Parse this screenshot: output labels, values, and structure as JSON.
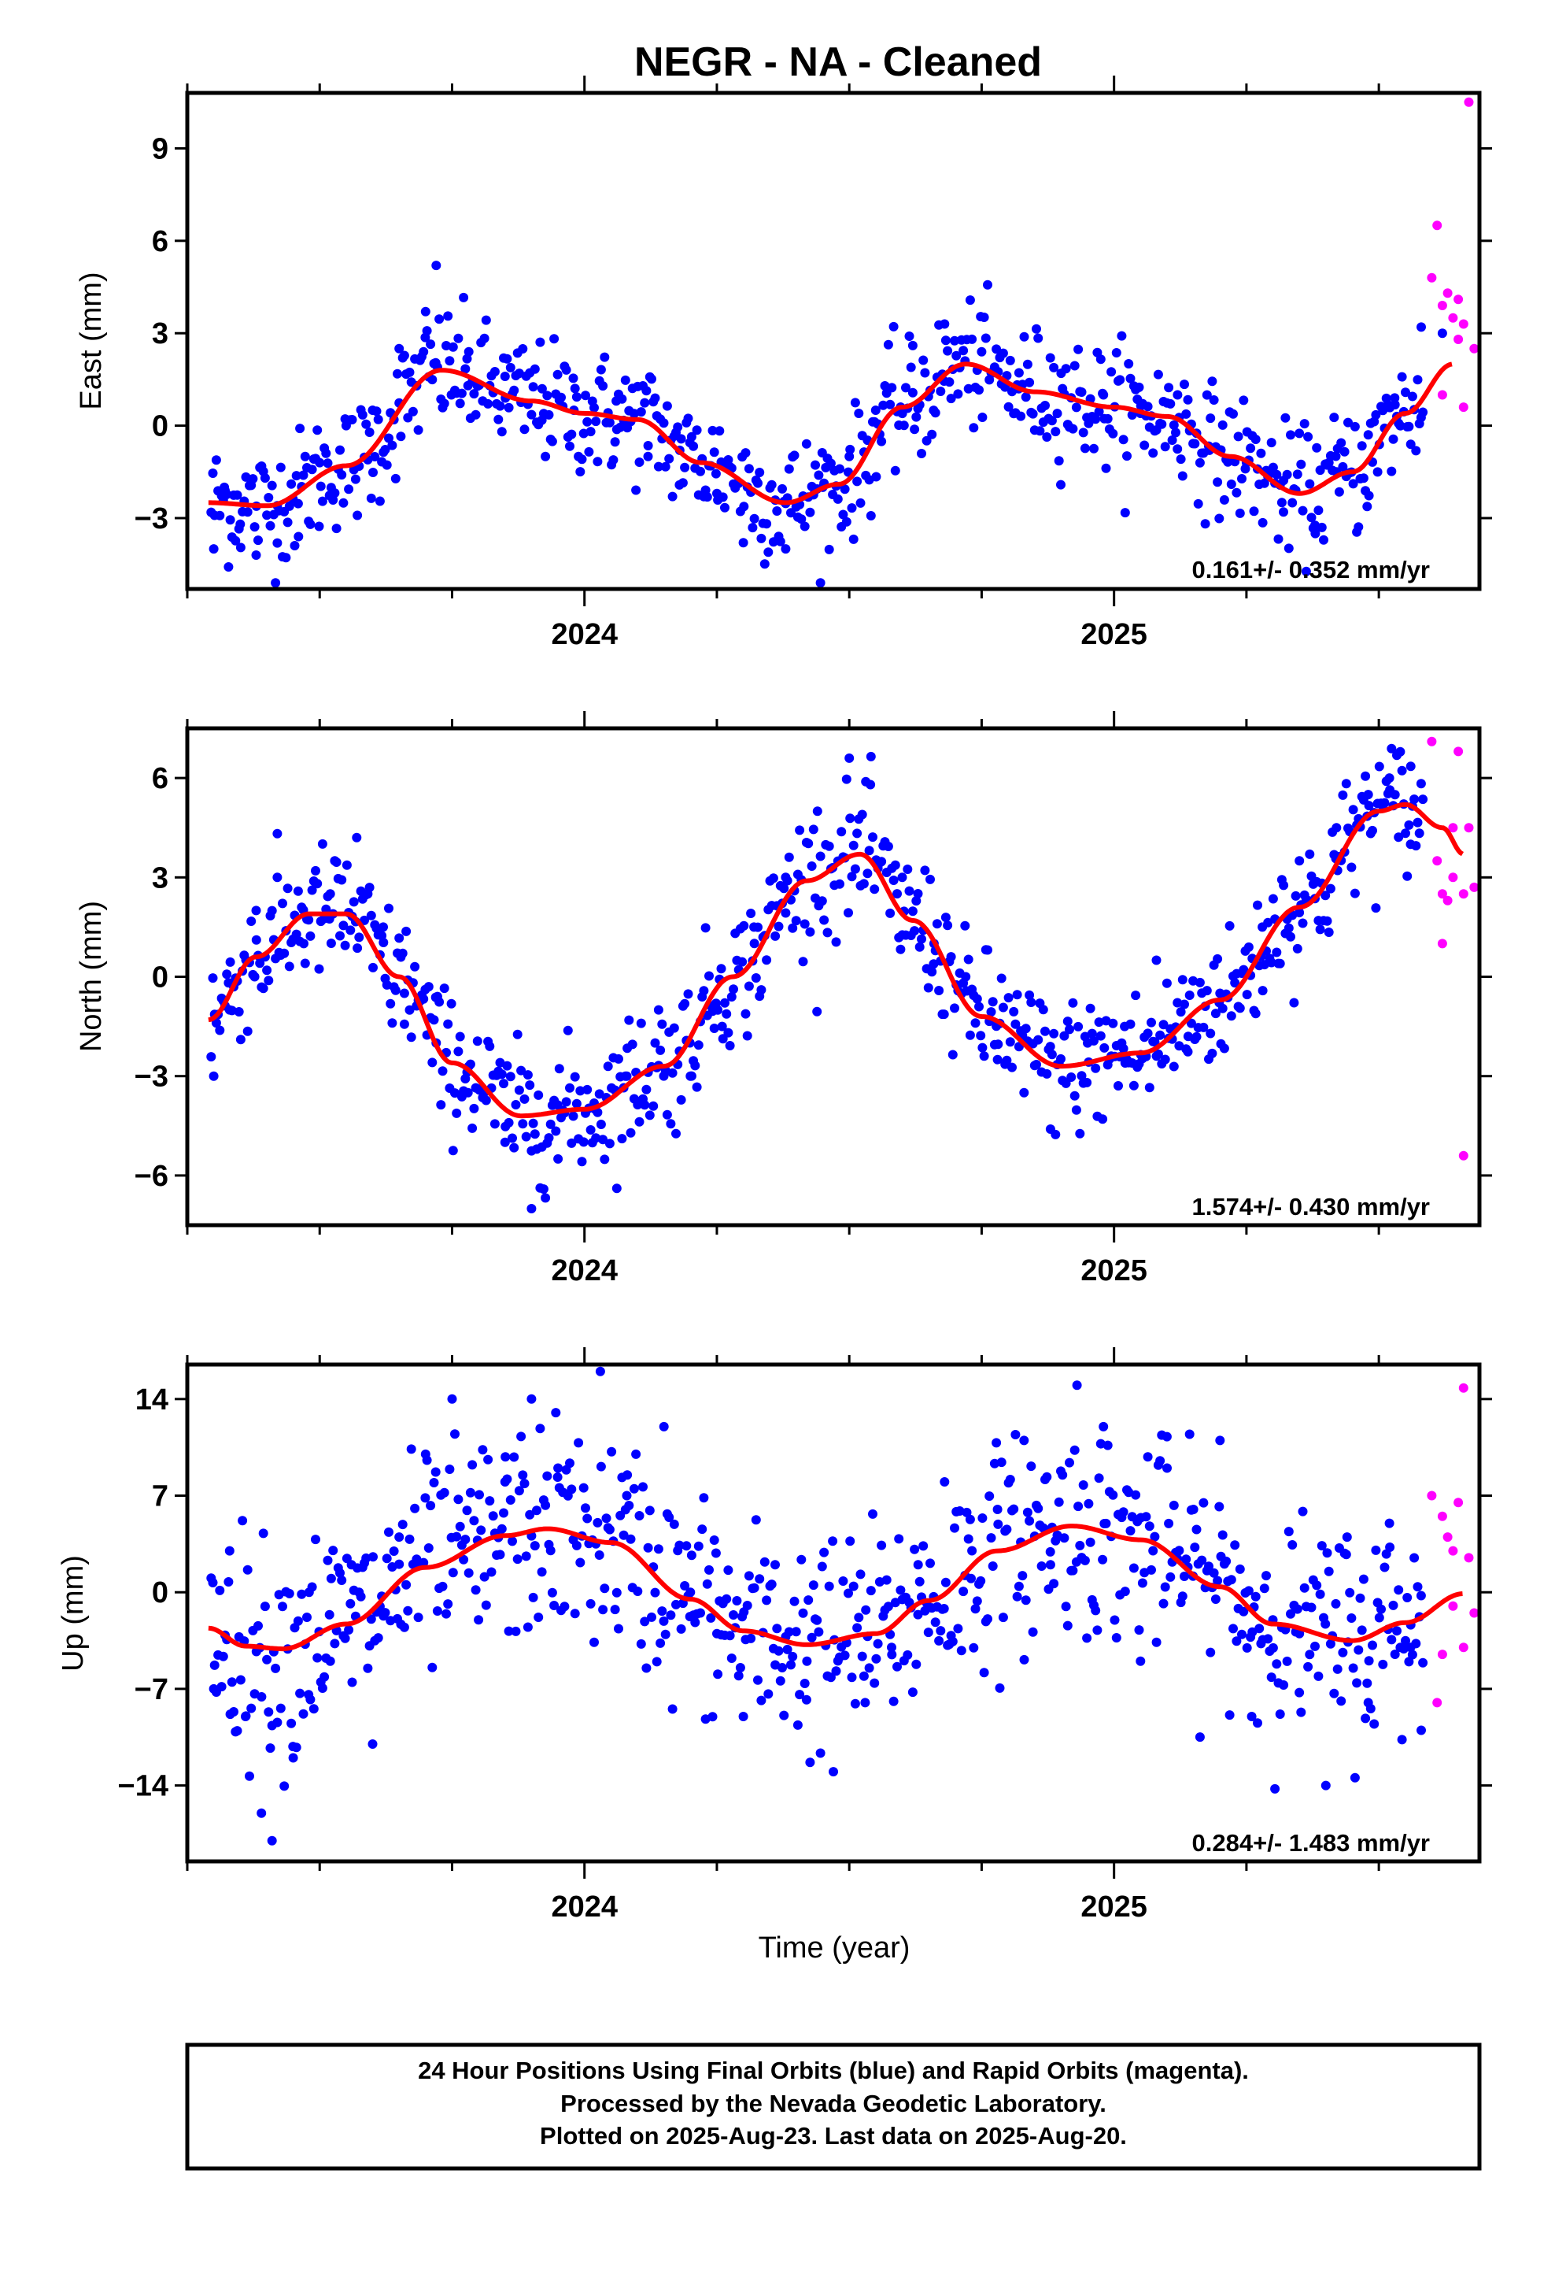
{
  "title": "NEGR  - NA - Cleaned",
  "xlabel": "Time (year)",
  "footer_lines": [
    "24 Hour Positions Using Final Orbits (blue) and Rapid Orbits (magenta).",
    "Processed by the Nevada Geodetic Laboratory.",
    "Plotted on 2025-Aug-23. Last data on 2025-Aug-20."
  ],
  "colors": {
    "final": "#0000ff",
    "rapid": "#ff00ff",
    "model": "#ff0000",
    "frame": "#000000"
  },
  "chart_data": [
    {
      "type": "scatter",
      "name": "east",
      "ylabel": "East (mm)",
      "rate": "0.161+/- 0.352 mm/yr",
      "xlim": [
        2023.25,
        2025.69
      ],
      "ylim": [
        -5.3,
        10.8
      ],
      "yticks": [
        -3,
        0,
        3,
        6,
        9
      ],
      "xticks": [
        2024,
        2025
      ],
      "model_points": [
        [
          2023.29,
          -2.5
        ],
        [
          2023.4,
          -2.6
        ],
        [
          2023.55,
          -1.3
        ],
        [
          2023.73,
          1.8
        ],
        [
          2023.9,
          0.8
        ],
        [
          2024.0,
          0.4
        ],
        [
          2024.1,
          0.2
        ],
        [
          2024.22,
          -1.2
        ],
        [
          2024.38,
          -2.5
        ],
        [
          2024.48,
          -1.9
        ],
        [
          2024.6,
          0.6
        ],
        [
          2024.72,
          2.0
        ],
        [
          2024.85,
          1.1
        ],
        [
          2025.0,
          0.6
        ],
        [
          2025.1,
          0.3
        ],
        [
          2025.22,
          -1.0
        ],
        [
          2025.35,
          -2.2
        ],
        [
          2025.45,
          -1.5
        ],
        [
          2025.55,
          0.4
        ],
        [
          2025.64,
          2.0
        ]
      ],
      "final_samples": [
        [
          2023.3,
          -4.0
        ],
        [
          2023.32,
          -2.0
        ],
        [
          2023.35,
          -3.2
        ],
        [
          2023.38,
          -4.2
        ],
        [
          2023.42,
          -2.6
        ],
        [
          2023.46,
          -3.6
        ],
        [
          2023.5,
          -1.2
        ],
        [
          2023.55,
          0.0
        ],
        [
          2023.6,
          0.5
        ],
        [
          2023.65,
          2.5
        ],
        [
          2023.7,
          3.7
        ],
        [
          2023.72,
          5.2
        ],
        [
          2023.78,
          1.3
        ],
        [
          2023.85,
          1.6
        ],
        [
          2023.92,
          1.2
        ],
        [
          2023.98,
          0.5
        ],
        [
          2024.06,
          0.8
        ],
        [
          2024.12,
          -1.0
        ],
        [
          2024.18,
          -0.8
        ],
        [
          2024.25,
          -2.2
        ],
        [
          2024.3,
          -3.8
        ],
        [
          2024.38,
          -4.0
        ],
        [
          2024.45,
          -2.0
        ],
        [
          2024.5,
          -1.0
        ],
        [
          2024.55,
          0.5
        ],
        [
          2024.62,
          2.6
        ],
        [
          2024.68,
          3.3
        ],
        [
          2024.75,
          2.4
        ],
        [
          2024.82,
          1.2
        ],
        [
          2024.9,
          1.7
        ],
        [
          2024.98,
          1.0
        ],
        [
          2025.05,
          0.4
        ],
        [
          2025.12,
          1.0
        ],
        [
          2025.18,
          -0.8
        ],
        [
          2025.25,
          -1.2
        ],
        [
          2025.32,
          -2.8
        ],
        [
          2025.38,
          -3.5
        ],
        [
          2025.42,
          -1.5
        ],
        [
          2025.48,
          -0.3
        ],
        [
          2025.53,
          0.9
        ],
        [
          2025.58,
          3.2
        ],
        [
          2025.62,
          3.0
        ]
      ],
      "rapid_points": [
        [
          2025.6,
          4.8
        ],
        [
          2025.61,
          6.5
        ],
        [
          2025.62,
          3.9
        ],
        [
          2025.62,
          1.0
        ],
        [
          2025.63,
          4.3
        ],
        [
          2025.64,
          3.5
        ],
        [
          2025.65,
          4.1
        ],
        [
          2025.65,
          2.8
        ],
        [
          2025.66,
          3.3
        ],
        [
          2025.66,
          0.6
        ],
        [
          2025.67,
          10.5
        ],
        [
          2025.68,
          2.5
        ]
      ]
    },
    {
      "type": "scatter",
      "name": "north",
      "ylabel": "North (mm)",
      "rate": "1.574+/- 0.430 mm/yr",
      "xlim": [
        2023.25,
        2025.69
      ],
      "ylim": [
        -7.5,
        7.5
      ],
      "yticks": [
        -6,
        -3,
        0,
        3,
        6
      ],
      "xticks": [
        2024,
        2025
      ],
      "model_points": [
        [
          2023.29,
          -1.3
        ],
        [
          2023.38,
          0.6
        ],
        [
          2023.48,
          1.9
        ],
        [
          2023.55,
          1.9
        ],
        [
          2023.65,
          0.0
        ],
        [
          2023.75,
          -2.6
        ],
        [
          2023.88,
          -4.2
        ],
        [
          2024.0,
          -4.0
        ],
        [
          2024.15,
          -2.7
        ],
        [
          2024.28,
          0.0
        ],
        [
          2024.42,
          2.9
        ],
        [
          2024.52,
          3.7
        ],
        [
          2024.62,
          1.7
        ],
        [
          2024.75,
          -1.2
        ],
        [
          2024.9,
          -2.7
        ],
        [
          2025.05,
          -2.3
        ],
        [
          2025.2,
          -0.7
        ],
        [
          2025.35,
          2.1
        ],
        [
          2025.5,
          5.0
        ],
        [
          2025.55,
          5.2
        ],
        [
          2025.62,
          4.5
        ],
        [
          2025.66,
          3.7
        ]
      ],
      "final_samples": [
        [
          2023.3,
          -3.0
        ],
        [
          2023.33,
          -1.0
        ],
        [
          2023.38,
          2.0
        ],
        [
          2023.42,
          3.0
        ],
        [
          2023.47,
          1.0
        ],
        [
          2023.52,
          2.5
        ],
        [
          2023.57,
          4.2
        ],
        [
          2023.62,
          1.5
        ],
        [
          2023.66,
          -0.5
        ],
        [
          2023.72,
          -2.0
        ],
        [
          2023.78,
          -3.5
        ],
        [
          2023.85,
          -5.0
        ],
        [
          2023.9,
          -7.0
        ],
        [
          2023.95,
          -5.5
        ],
        [
          2024.02,
          -4.0
        ],
        [
          2024.08,
          -3.0
        ],
        [
          2024.14,
          -1.0
        ],
        [
          2024.2,
          -3.0
        ],
        [
          2024.26,
          -1.5
        ],
        [
          2024.32,
          1.5
        ],
        [
          2024.38,
          3.0
        ],
        [
          2024.44,
          5.0
        ],
        [
          2024.5,
          6.6
        ],
        [
          2024.54,
          5.8
        ],
        [
          2024.6,
          3.0
        ],
        [
          2024.66,
          1.0
        ],
        [
          2024.72,
          0.0
        ],
        [
          2024.78,
          -2.5
        ],
        [
          2024.83,
          -3.5
        ],
        [
          2024.88,
          -4.6
        ],
        [
          2024.95,
          -2.0
        ],
        [
          2025.02,
          -1.5
        ],
        [
          2025.08,
          0.5
        ],
        [
          2025.14,
          -1.8
        ],
        [
          2025.2,
          -0.5
        ],
        [
          2025.28,
          1.5
        ],
        [
          2025.35,
          3.5
        ],
        [
          2025.42,
          4.5
        ],
        [
          2025.48,
          5.5
        ],
        [
          2025.52,
          6.0
        ],
        [
          2025.56,
          4.0
        ]
      ],
      "rapid_points": [
        [
          2025.6,
          7.1
        ],
        [
          2025.61,
          3.5
        ],
        [
          2025.62,
          2.5
        ],
        [
          2025.62,
          1.0
        ],
        [
          2025.63,
          2.3
        ],
        [
          2025.64,
          3.0
        ],
        [
          2025.64,
          4.5
        ],
        [
          2025.65,
          6.8
        ],
        [
          2025.66,
          2.5
        ],
        [
          2025.66,
          -5.4
        ],
        [
          2025.67,
          4.5
        ],
        [
          2025.68,
          2.7
        ]
      ]
    },
    {
      "type": "scatter",
      "name": "up",
      "ylabel": "Up (mm)",
      "rate": "0.284+/- 1.483 mm/yr",
      "xlim": [
        2023.25,
        2025.69
      ],
      "ylim": [
        -19.5,
        16.5
      ],
      "yticks": [
        -14,
        -7,
        0,
        7,
        14
      ],
      "xticks": [
        2024,
        2025
      ],
      "model_points": [
        [
          2023.29,
          -2.6
        ],
        [
          2023.36,
          -3.9
        ],
        [
          2023.43,
          -4.1
        ],
        [
          2023.55,
          -2.3
        ],
        [
          2023.7,
          1.8
        ],
        [
          2023.85,
          4.1
        ],
        [
          2023.93,
          4.6
        ],
        [
          2024.05,
          3.6
        ],
        [
          2024.2,
          -0.5
        ],
        [
          2024.3,
          -2.8
        ],
        [
          2024.42,
          -3.8
        ],
        [
          2024.55,
          -3.0
        ],
        [
          2024.65,
          -0.6
        ],
        [
          2024.78,
          3.0
        ],
        [
          2024.92,
          4.8
        ],
        [
          2025.05,
          3.8
        ],
        [
          2025.2,
          0.4
        ],
        [
          2025.3,
          -2.3
        ],
        [
          2025.45,
          -3.5
        ],
        [
          2025.55,
          -2.2
        ],
        [
          2025.66,
          -0.1
        ]
      ],
      "final_samples": [
        [
          2023.3,
          -7.0
        ],
        [
          2023.33,
          3.0
        ],
        [
          2023.36,
          -9.0
        ],
        [
          2023.39,
          -16.0
        ],
        [
          2023.41,
          -18.0
        ],
        [
          2023.45,
          -12.0
        ],
        [
          2023.48,
          0.0
        ],
        [
          2023.52,
          -5.0
        ],
        [
          2023.56,
          2.0
        ],
        [
          2023.6,
          -11.0
        ],
        [
          2023.65,
          4.0
        ],
        [
          2023.7,
          10.0
        ],
        [
          2023.75,
          14.0
        ],
        [
          2023.8,
          -2.0
        ],
        [
          2023.85,
          8.0
        ],
        [
          2023.9,
          14.0
        ],
        [
          2023.95,
          9.0
        ],
        [
          2024.03,
          16.0
        ],
        [
          2024.08,
          7.0
        ],
        [
          2024.15,
          12.0
        ],
        [
          2024.2,
          0.0
        ],
        [
          2024.25,
          -3.0
        ],
        [
          2024.3,
          -9.0
        ],
        [
          2024.36,
          2.0
        ],
        [
          2024.42,
          -5.0
        ],
        [
          2024.47,
          -13.0
        ],
        [
          2024.53,
          -8.0
        ],
        [
          2024.58,
          -4.0
        ],
        [
          2024.63,
          2.0
        ],
        [
          2024.68,
          8.0
        ],
        [
          2024.73,
          1.0
        ],
        [
          2024.78,
          6.0
        ],
        [
          2024.83,
          11.0
        ],
        [
          2024.88,
          2.0
        ],
        [
          2024.93,
          15.0
        ],
        [
          2024.98,
          12.0
        ],
        [
          2025.05,
          -5.0
        ],
        [
          2025.1,
          9.0
        ],
        [
          2025.15,
          6.0
        ],
        [
          2025.2,
          11.0
        ],
        [
          2025.26,
          -9.0
        ],
        [
          2025.3,
          -2.0
        ],
        [
          2025.35,
          -3.0
        ],
        [
          2025.4,
          -14.0
        ],
        [
          2025.44,
          4.0
        ],
        [
          2025.48,
          -8.0
        ],
        [
          2025.52,
          5.0
        ],
        [
          2025.56,
          -4.0
        ],
        [
          2025.58,
          -10.0
        ]
      ],
      "rapid_points": [
        [
          2025.6,
          7.0
        ],
        [
          2025.61,
          -8.0
        ],
        [
          2025.62,
          5.5
        ],
        [
          2025.62,
          -4.5
        ],
        [
          2025.63,
          4.0
        ],
        [
          2025.64,
          3.0
        ],
        [
          2025.64,
          -1.0
        ],
        [
          2025.65,
          6.5
        ],
        [
          2025.66,
          -4.0
        ],
        [
          2025.66,
          14.8
        ],
        [
          2025.67,
          2.5
        ],
        [
          2025.68,
          -1.5
        ]
      ]
    }
  ]
}
